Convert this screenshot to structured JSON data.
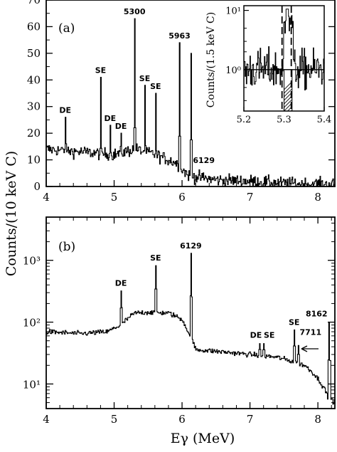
{
  "chart_data": [
    {
      "panel": "(a)",
      "type": "line",
      "xlim": [
        4,
        8.25
      ],
      "ylim": [
        0,
        70
      ],
      "x_ticks": [
        "4",
        "5",
        "6",
        "7",
        "8"
      ],
      "y_ticks": [
        "0",
        "10",
        "20",
        "30",
        "40",
        "50",
        "60",
        "70"
      ],
      "baseline": [
        {
          "x": 4.0,
          "y": 14
        },
        {
          "x": 4.5,
          "y": 13
        },
        {
          "x": 5.0,
          "y": 12
        },
        {
          "x": 5.3,
          "y": 14
        },
        {
          "x": 5.6,
          "y": 12
        },
        {
          "x": 5.9,
          "y": 9
        },
        {
          "x": 6.1,
          "y": 4
        },
        {
          "x": 6.5,
          "y": 2.5
        },
        {
          "x": 7.0,
          "y": 2
        },
        {
          "x": 7.5,
          "y": 1.2
        },
        {
          "x": 8.25,
          "y": 0.8
        }
      ],
      "peaks": [
        {
          "x": 4.28,
          "y": 26,
          "label": "DE"
        },
        {
          "x": 4.8,
          "y": 41,
          "label": "SE"
        },
        {
          "x": 4.94,
          "y": 23,
          "label": "DE"
        },
        {
          "x": 5.1,
          "y": 20,
          "label": "DE"
        },
        {
          "x": 5.3,
          "y": 63,
          "label": "5300"
        },
        {
          "x": 5.45,
          "y": 38,
          "label": "SE"
        },
        {
          "x": 5.61,
          "y": 35,
          "label": "SE"
        },
        {
          "x": 5.963,
          "y": 54,
          "label": "5963"
        },
        {
          "x": 6.129,
          "y": 50,
          "label": "6129"
        }
      ]
    },
    {
      "panel": "inset",
      "type": "line",
      "xlim": [
        5.2,
        5.4
      ],
      "ylim": [
        0.2,
        12
      ],
      "log_y": true,
      "x_ticks": [
        "5.2",
        "5.3",
        "5.4"
      ],
      "y_ticks": [
        "10⁰",
        "10¹"
      ],
      "ylabel": "Counts/(1.5 keV C)",
      "dashed_lines_x": [
        5.295,
        5.318
      ],
      "hatched_region": [
        5.3,
        5.32
      ]
    },
    {
      "panel": "(b)",
      "type": "line",
      "xlim": [
        4,
        8.25
      ],
      "ylim": [
        4,
        5000
      ],
      "log_y": true,
      "x_ticks": [
        "4",
        "5",
        "6",
        "7",
        "8"
      ],
      "y_ticks": [
        "10¹",
        "10²",
        "10³"
      ],
      "xlabel": "Eγ (MeV)",
      "ylabel": "Counts/(10 keV C)",
      "baseline": [
        {
          "x": 4.0,
          "y": 70
        },
        {
          "x": 4.5,
          "y": 65
        },
        {
          "x": 4.9,
          "y": 70
        },
        {
          "x": 5.1,
          "y": 90
        },
        {
          "x": 5.3,
          "y": 140
        },
        {
          "x": 5.5,
          "y": 145
        },
        {
          "x": 5.8,
          "y": 140
        },
        {
          "x": 6.0,
          "y": 110
        },
        {
          "x": 6.1,
          "y": 60
        },
        {
          "x": 6.2,
          "y": 36
        },
        {
          "x": 6.6,
          "y": 33
        },
        {
          "x": 7.0,
          "y": 30
        },
        {
          "x": 7.4,
          "y": 27
        },
        {
          "x": 7.8,
          "y": 20
        },
        {
          "x": 8.0,
          "y": 12
        },
        {
          "x": 8.15,
          "y": 6
        },
        {
          "x": 8.25,
          "y": 5
        }
      ],
      "peaks": [
        {
          "x": 5.1,
          "y": 320,
          "label": "DE"
        },
        {
          "x": 5.61,
          "y": 820,
          "label": "SE"
        },
        {
          "x": 6.129,
          "y": 1300,
          "label": "6129"
        },
        {
          "x": 7.14,
          "y": 45,
          "label": "DE"
        },
        {
          "x": 7.2,
          "y": 45,
          "label": "SE"
        },
        {
          "x": 7.65,
          "y": 75,
          "label": "SE"
        },
        {
          "x": 7.711,
          "y": 42,
          "label": "7711"
        },
        {
          "x": 8.162,
          "y": 100,
          "label": "8162"
        }
      ]
    }
  ]
}
